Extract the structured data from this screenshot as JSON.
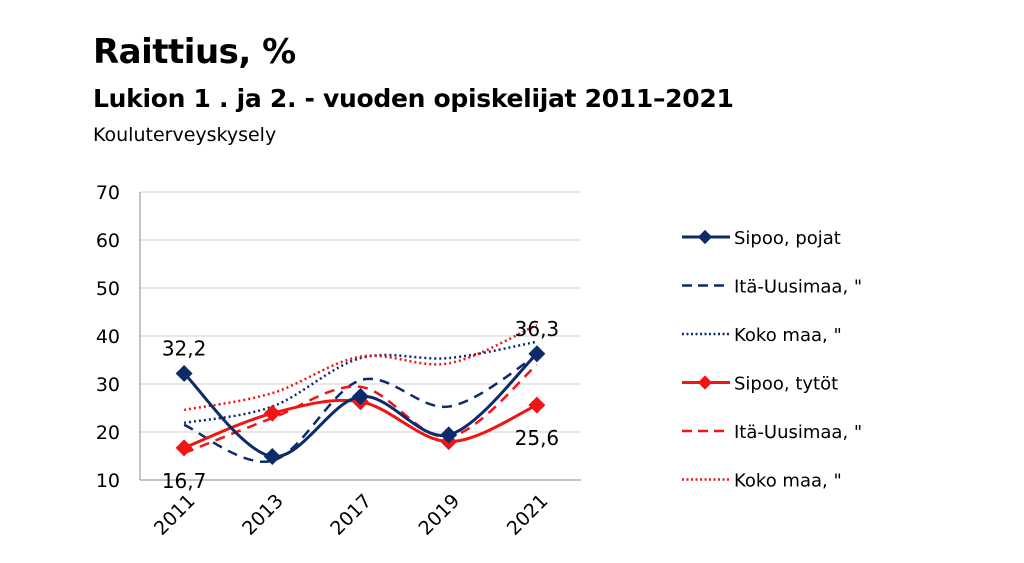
{
  "chart_data": {
    "type": "line",
    "title": "Raittius, %",
    "subtitle": "Lukion 1 . ja 2. - vuoden opiskelijat 2011–2021",
    "source": "Kouluterveyskysely",
    "categories": [
      "2011",
      "2013",
      "2017",
      "2019",
      "2021"
    ],
    "ylim": [
      10,
      70
    ],
    "yticks": [
      10,
      20,
      30,
      40,
      50,
      60,
      70
    ],
    "grid": true,
    "legend_position": "right",
    "series": [
      {
        "name": "Sipoo, pojat",
        "color": "#0d2a6b",
        "style": "solid",
        "markers": true,
        "values": [
          32.2,
          14.9,
          27.4,
          19.4,
          36.3
        ]
      },
      {
        "name": "Itä-Uusimaa, \"",
        "color": "#0d2a6b",
        "style": "dashed",
        "markers": false,
        "values": [
          21.5,
          14.0,
          30.8,
          25.3,
          36.0
        ]
      },
      {
        "name": "Koko maa, \"",
        "color": "#0d2a6b",
        "style": "dotted",
        "markers": false,
        "values": [
          21.9,
          25.3,
          35.4,
          35.4,
          38.8
        ]
      },
      {
        "name": "Sipoo, tytöt",
        "color": "#f01414",
        "style": "solid",
        "markers": true,
        "values": [
          16.7,
          23.9,
          26.3,
          18.0,
          25.6
        ]
      },
      {
        "name": "Itä-Uusimaa, \"",
        "color": "#f01414",
        "style": "dashed",
        "markers": false,
        "values": [
          15.6,
          22.9,
          29.4,
          19.0,
          34.0
        ]
      },
      {
        "name": "Koko maa, \"",
        "color": "#f01414",
        "style": "dotted",
        "markers": false,
        "values": [
          24.6,
          28.1,
          35.7,
          34.3,
          42.3
        ]
      }
    ],
    "data_labels": [
      {
        "text": "32,2",
        "series": 0,
        "index": 0,
        "pos": "above"
      },
      {
        "text": "36,3",
        "series": 0,
        "index": 4,
        "pos": "above"
      },
      {
        "text": "16,7",
        "series": 3,
        "index": 0,
        "pos": "below"
      },
      {
        "text": "25,6",
        "series": 3,
        "index": 4,
        "pos": "below"
      }
    ]
  }
}
